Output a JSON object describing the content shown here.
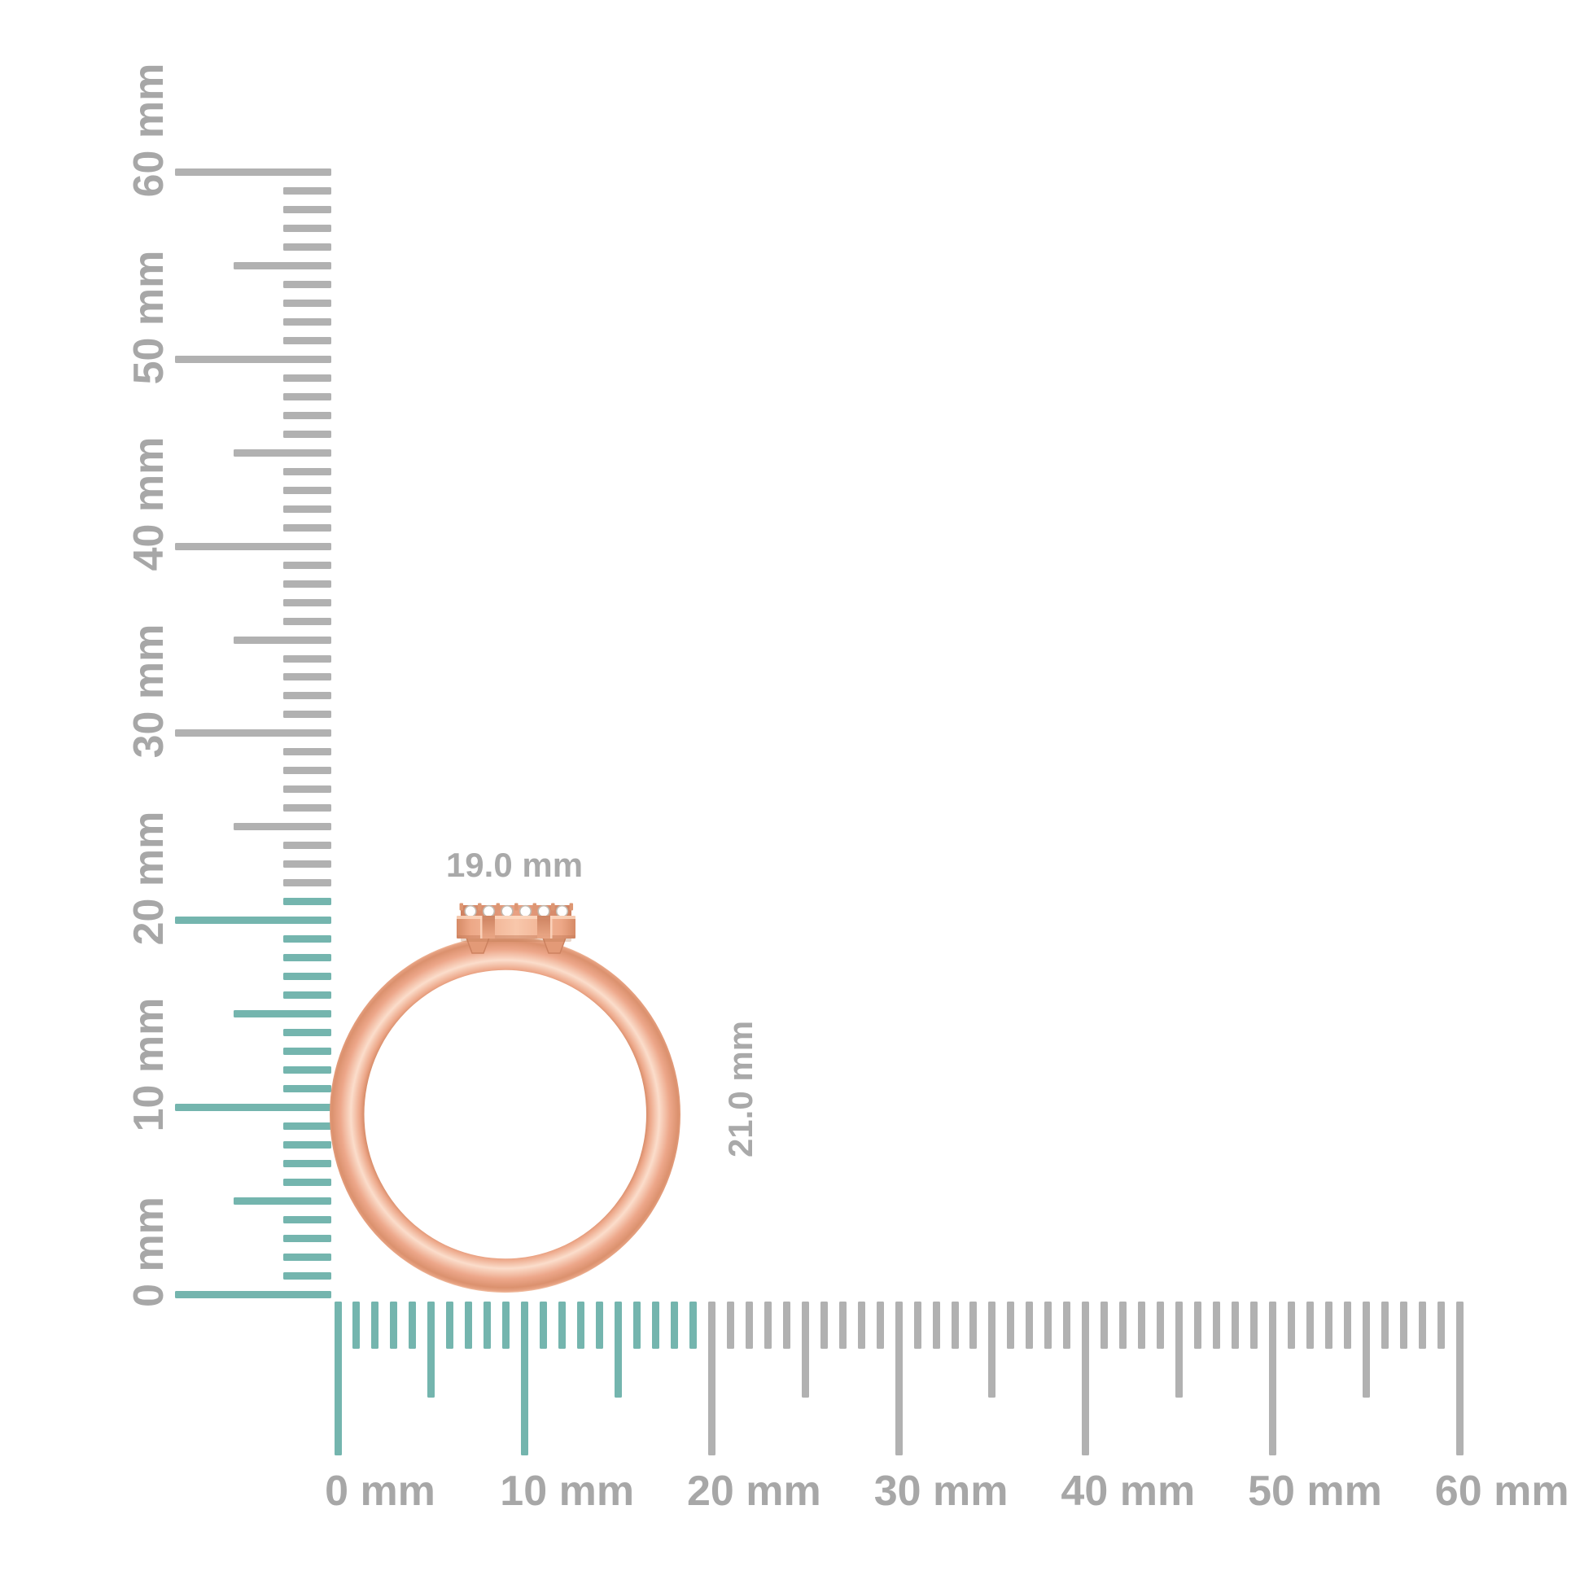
{
  "dimensions": {
    "width_label": "19.0 mm",
    "height_label": "21.0 mm"
  },
  "rulers": {
    "unit": "mm",
    "horizontal": {
      "min_mm": 0,
      "max_mm": 60,
      "minor_step_mm": 1,
      "medium_step_mm": 5,
      "major_step_mm": 10,
      "labels": [
        "0 mm",
        "10 mm",
        "20 mm",
        "30 mm",
        "40 mm",
        "50 mm",
        "60 mm"
      ],
      "highlighted_mm_from": 0,
      "highlighted_mm_to": 19
    },
    "vertical": {
      "min_mm": 0,
      "max_mm": 60,
      "minor_step_mm": 1,
      "medium_step_mm": 5,
      "major_step_mm": 10,
      "labels": [
        "0 mm",
        "10 mm",
        "20 mm",
        "30 mm",
        "40 mm",
        "50 mm",
        "60 mm"
      ],
      "highlighted_mm_from": 0,
      "highlighted_mm_to": 21
    }
  },
  "ring": {
    "visible_stones": 6
  },
  "colors": {
    "highlight_teal": "#74b5ae",
    "tick_gray": "#b1b1b1",
    "label_gray": "#a7a7a7",
    "dim_label_gray": "#a9a9a9",
    "gold_dark": "#d98f6d",
    "gold_mid": "#eda88a",
    "gold_highlight": "#fbddcb",
    "gold_rim": "#f2c0a4",
    "diamond_white": "#ffffff",
    "diamond_edge": "#c3b9ae"
  }
}
